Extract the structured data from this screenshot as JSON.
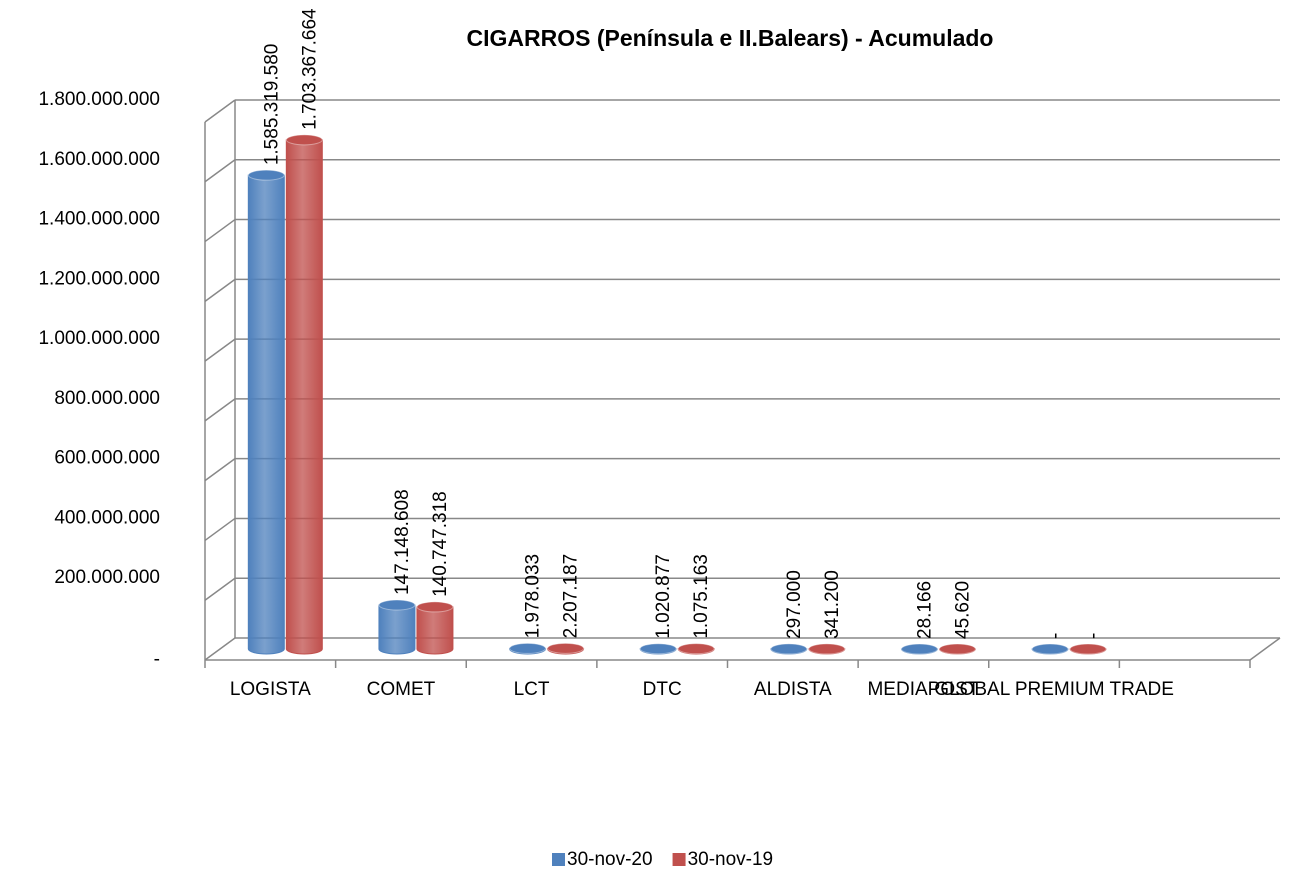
{
  "chart_data": {
    "type": "bar3d",
    "title": "CIGARROS  (Península e II.Balears) - Acumulado",
    "categories": [
      "LOGISTA",
      "COMET",
      "LCT",
      "DTC",
      "ALDISTA",
      "MEDIAPOST",
      "GLOBAL PREMIUM TRADE",
      null
    ],
    "series": [
      {
        "name": "30-nov-20",
        "color": "#4f81bd",
        "values": [
          1585319580,
          147148608,
          1978033,
          1020877,
          297000,
          28166,
          0,
          null
        ],
        "value_labels": [
          "1.585.319.580",
          "147.148.608",
          "1.978.033",
          "1.020.877",
          "297.000",
          "28.166",
          "-",
          null
        ]
      },
      {
        "name": "30-nov-19",
        "color": "#c0504d",
        "values": [
          1703367664,
          140747318,
          2207187,
          1075163,
          341200,
          45620,
          0,
          null
        ],
        "value_labels": [
          "1.703.367.664",
          "140.747.318",
          "2.207.187",
          "1.075.163",
          "341.200",
          "45.620",
          "-",
          null
        ]
      }
    ],
    "ylim": [
      0,
      1800000000
    ],
    "yticks": [
      {
        "value": 0,
        "label": "-"
      },
      {
        "value": 200000000,
        "label": "200.000.000"
      },
      {
        "value": 400000000,
        "label": "400.000.000"
      },
      {
        "value": 600000000,
        "label": "600.000.000"
      },
      {
        "value": 800000000,
        "label": "800.000.000"
      },
      {
        "value": 1000000000,
        "label": "1.000.000.000"
      },
      {
        "value": 1200000000,
        "label": "1.200.000.000"
      },
      {
        "value": 1400000000,
        "label": "1.400.000.000"
      },
      {
        "value": 1600000000,
        "label": "1.600.000.000"
      },
      {
        "value": 1800000000,
        "label": "1.800.000.000"
      }
    ],
    "grid": true,
    "legend": "bottom"
  }
}
